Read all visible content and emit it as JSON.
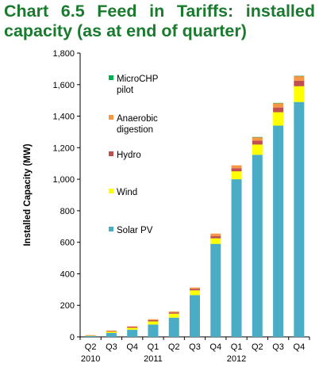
{
  "chart_data": {
    "type": "bar",
    "stacked": true,
    "title": "Chart 6.5 Feed in Tariffs: installed capacity (as at end of quarter)",
    "ylabel": "Installed Capacity (MW)",
    "xlabel": "",
    "ylim": [
      0,
      1800
    ],
    "yticks": [
      "0",
      "200",
      "400",
      "600",
      "800",
      "1,000",
      "1,200",
      "1,400",
      "1,600",
      "1,800"
    ],
    "quarters": [
      "Q2",
      "Q3",
      "Q4",
      "Q1",
      "Q2",
      "Q3",
      "Q4",
      "Q1",
      "Q2",
      "Q3",
      "Q4"
    ],
    "years": [
      {
        "label": "2010",
        "index": 0
      },
      {
        "label": "2011",
        "index": 3
      },
      {
        "label": "2012",
        "index": 7
      }
    ],
    "grid": false,
    "legend_position": "left-inside",
    "series": [
      {
        "name": "Solar PV",
        "color": "#4bacc6",
        "values": [
          6,
          25,
          45,
          78,
          122,
          265,
          590,
          1000,
          1155,
          1340,
          1490
        ]
      },
      {
        "name": "Wind",
        "color": "#ffff00",
        "values": [
          3,
          8,
          12,
          20,
          25,
          30,
          35,
          50,
          65,
          85,
          100
        ]
      },
      {
        "name": "Hydro",
        "color": "#c0504d",
        "values": [
          1,
          4,
          6,
          8,
          8,
          10,
          15,
          20,
          25,
          30,
          35
        ]
      },
      {
        "name": "Anaerobic digestion",
        "color": "#f79646",
        "values": [
          1,
          3,
          4,
          6,
          6,
          8,
          15,
          18,
          22,
          28,
          30
        ]
      },
      {
        "name": "MicroCHP pilot",
        "color": "#00b050",
        "values": [
          0,
          0,
          0,
          0,
          0,
          0,
          0,
          0,
          1,
          1,
          1
        ]
      }
    ],
    "legend_order": [
      {
        "lines": [
          "MicroCHP",
          "pilot"
        ],
        "color": "#00b050"
      },
      {
        "lines": [
          "Anaerobic",
          "digestion"
        ],
        "color": "#f79646"
      },
      {
        "lines": [
          "Hydro"
        ],
        "color": "#c0504d"
      },
      {
        "lines": [
          "Wind"
        ],
        "color": "#ffff00"
      },
      {
        "lines": [
          "Solar PV"
        ],
        "color": "#4bacc6"
      }
    ]
  }
}
